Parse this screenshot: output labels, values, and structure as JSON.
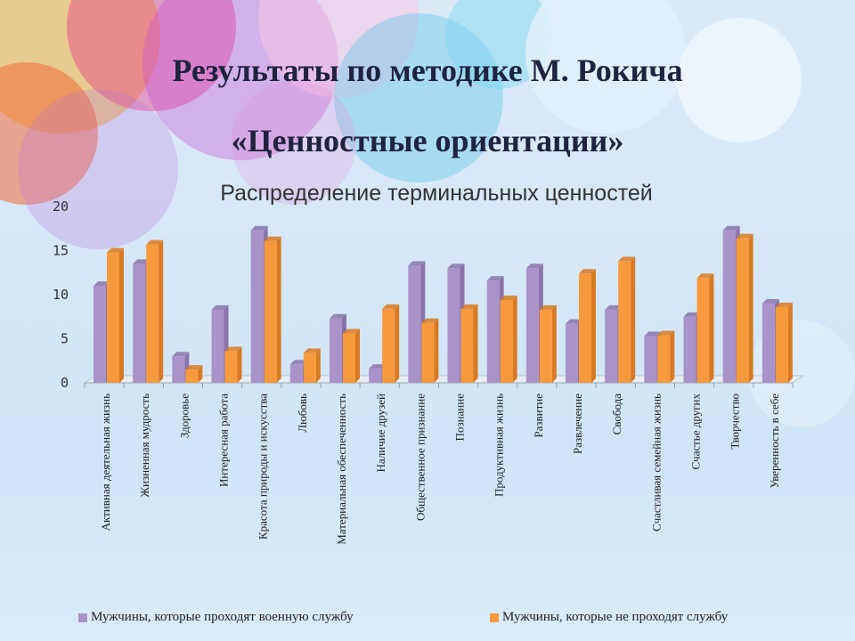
{
  "slide": {
    "title_line1": "Результаты по методике М. Рокича",
    "title_line2": "«Ценностные ориентации»"
  },
  "colors": {
    "series1": "#a993c9",
    "series1_dark": "#8a74aa",
    "series2": "#f79a3e",
    "series2_dark": "#d97a22",
    "title": "#1f2340"
  },
  "chart_data": {
    "type": "bar",
    "title": "Распределение терминальных ценностей",
    "xlabel": "",
    "ylabel": "",
    "ylim": [
      0,
      20
    ],
    "yticks": [
      "0",
      "5",
      "10",
      "15",
      "20"
    ],
    "legend_position": "bottom",
    "grid": false,
    "categories": [
      "Активная деятельная жизнь",
      "Жизненная мудрость",
      "Здоровье",
      "Интересная работа",
      "Красота природы и искусства",
      "Любовь",
      "Материальная обеспеченность",
      "Наличие друзей",
      "Общественное признание",
      "Познание",
      "Продуктивная жизнь",
      "Развитие",
      "Развлечение",
      "Свобода",
      "Счастливая семейная жизнь",
      "Счастье других",
      "Творчество",
      "Уверенность в себе"
    ],
    "series": [
      {
        "name": "Мужчины, которые проходят военную службу",
        "values": [
          11,
          13.5,
          3,
          8.3,
          17.3,
          2.1,
          7.3,
          1.6,
          13.3,
          13,
          11.6,
          13,
          6.7,
          8.3,
          5.3,
          7.5,
          17.3,
          9
        ]
      },
      {
        "name": "Мужчины, которые не проходят службу",
        "values": [
          14.8,
          15.7,
          1.5,
          3.6,
          16.1,
          3.4,
          5.6,
          8.4,
          6.8,
          8.4,
          9.4,
          8.3,
          12.4,
          13.8,
          5.4,
          11.9,
          16.4,
          8.6
        ]
      }
    ]
  }
}
